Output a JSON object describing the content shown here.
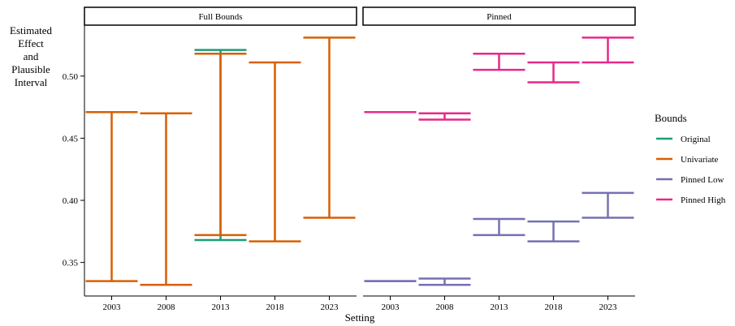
{
  "chart_data": {
    "type": "errorbar",
    "panels": [
      "Full Bounds",
      "Pinned"
    ],
    "categories": [
      "2003",
      "2008",
      "2013",
      "2018",
      "2023"
    ],
    "xlabel": "Setting",
    "ylabel_lines": [
      "Estimated",
      "Effect",
      "and",
      "Plausible",
      "Interval"
    ],
    "yticks": [
      "0.35",
      "0.40",
      "0.45",
      "0.50"
    ],
    "ylim": [
      0.323,
      0.541
    ],
    "legend": {
      "title": "Bounds",
      "placement": "right",
      "entries": [
        {
          "name": "Original",
          "color": "#1b9e77"
        },
        {
          "name": "Univariate",
          "color": "#d95f02"
        },
        {
          "name": "Pinned Low",
          "color": "#7570b3"
        },
        {
          "name": "Pinned High",
          "color": "#e7298a"
        }
      ]
    },
    "series": [
      {
        "name": "Original",
        "panel": "Full Bounds",
        "color": "#1b9e77",
        "intervals": [
          {
            "x": "2013",
            "low": 0.368,
            "high": 0.521
          }
        ]
      },
      {
        "name": "Univariate",
        "panel": "Full Bounds",
        "color": "#d95f02",
        "intervals": [
          {
            "x": "2003",
            "low": 0.335,
            "high": 0.471
          },
          {
            "x": "2008",
            "low": 0.332,
            "high": 0.47
          },
          {
            "x": "2013",
            "low": 0.372,
            "high": 0.518
          },
          {
            "x": "2018",
            "low": 0.367,
            "high": 0.511
          },
          {
            "x": "2023",
            "low": 0.386,
            "high": 0.531
          }
        ]
      },
      {
        "name": "Pinned Low",
        "panel": "Pinned",
        "color": "#7570b3",
        "intervals": [
          {
            "x": "2003",
            "low": 0.335,
            "high": 0.335
          },
          {
            "x": "2008",
            "low": 0.332,
            "high": 0.337
          },
          {
            "x": "2013",
            "low": 0.372,
            "high": 0.385
          },
          {
            "x": "2018",
            "low": 0.367,
            "high": 0.383
          },
          {
            "x": "2023",
            "low": 0.386,
            "high": 0.406
          }
        ]
      },
      {
        "name": "Pinned High",
        "panel": "Pinned",
        "color": "#e7298a",
        "intervals": [
          {
            "x": "2003",
            "low": 0.471,
            "high": 0.471
          },
          {
            "x": "2008",
            "low": 0.465,
            "high": 0.47
          },
          {
            "x": "2013",
            "low": 0.505,
            "high": 0.518
          },
          {
            "x": "2018",
            "low": 0.495,
            "high": 0.511
          },
          {
            "x": "2023",
            "low": 0.511,
            "high": 0.531
          }
        ]
      }
    ]
  }
}
